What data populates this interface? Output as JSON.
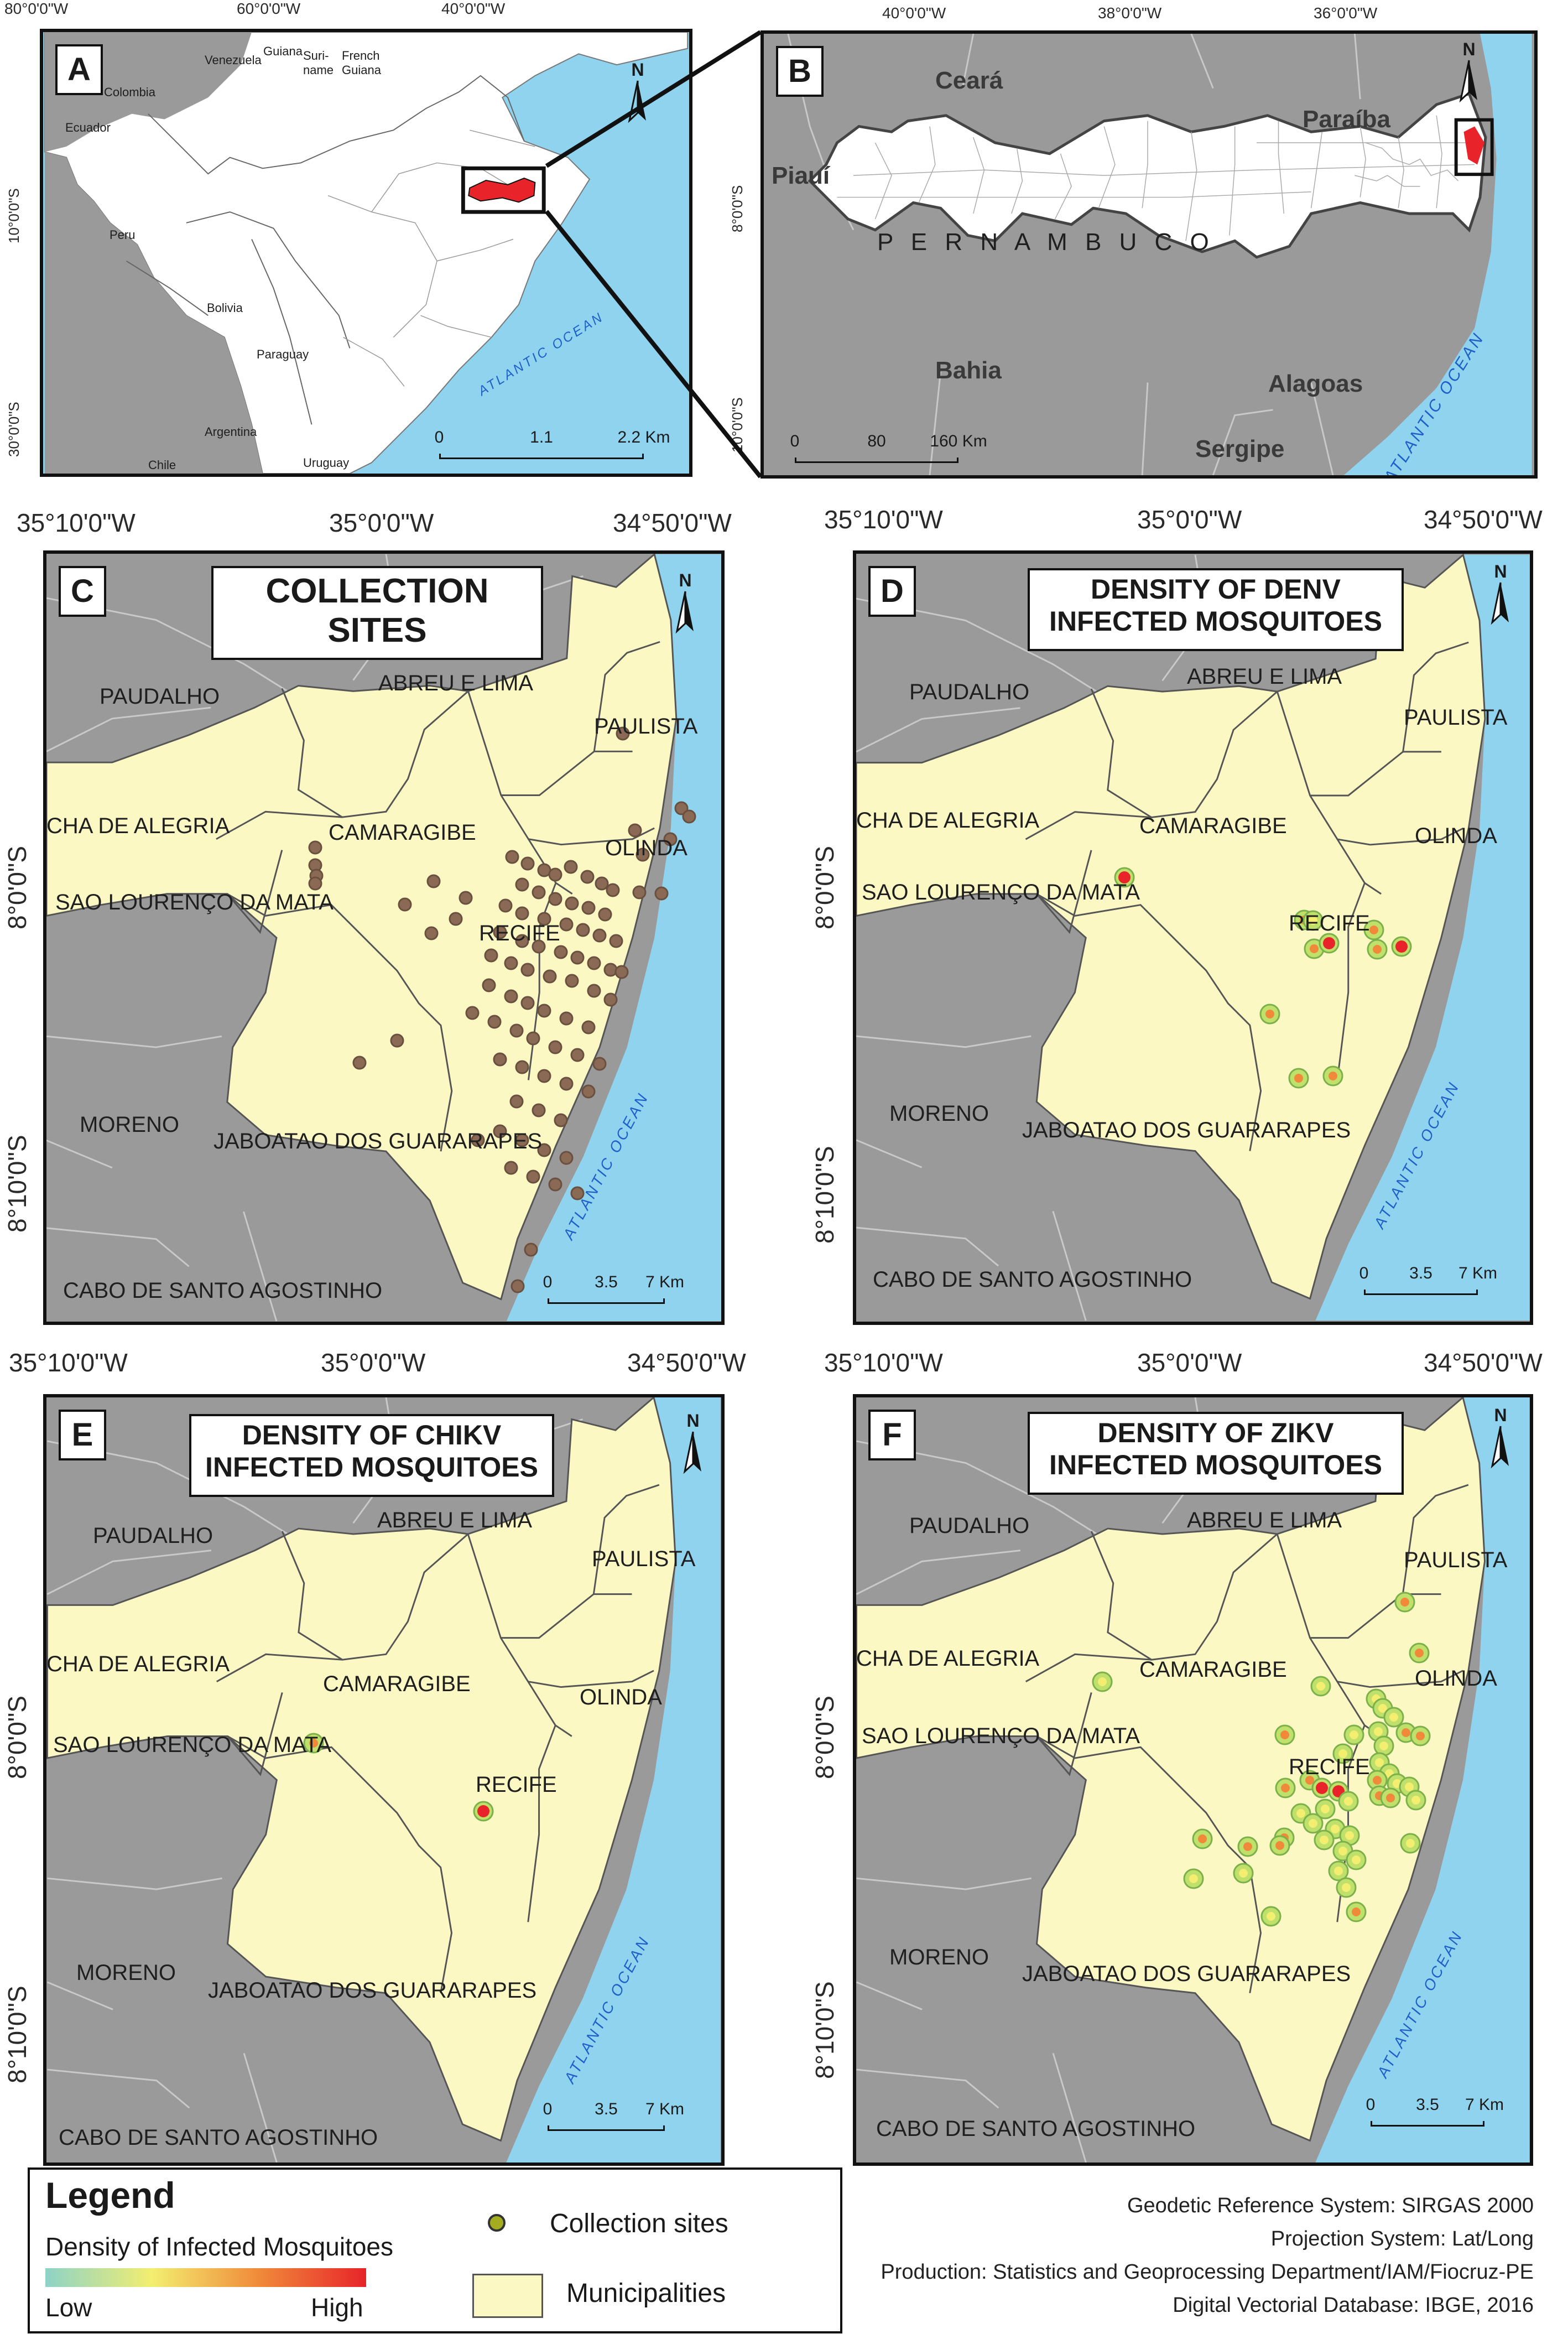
{
  "panel_labels": {
    "a": "A",
    "b": "B",
    "c": "C",
    "d": "D",
    "e": "E",
    "f": "F"
  },
  "top_coords": {
    "a_x": [
      "80°0'0\"W",
      "60°0'0\"W",
      "40°0'0\"W"
    ],
    "a_y": [
      "10°0'0\"S",
      "30°0'0\"S"
    ],
    "b_x": [
      "40°0'0\"W",
      "38°0'0\"W",
      "36°0'0\"W"
    ],
    "b_y": [
      "8°0'0\"S",
      "10°0'0\"S"
    ]
  },
  "grid_coords": {
    "x": [
      "35°10'0\"W",
      "35°0'0\"W",
      "34°50'0\"W"
    ],
    "y": [
      "8°0'0\"S",
      "8°10'0\"S"
    ]
  },
  "panel_a": {
    "countries": [
      "Colombia",
      "Venezuela",
      "Guiana",
      "Suri-\nname",
      "French\nGuiana",
      "Ecuador",
      "Peru",
      "Bolivia",
      "Paraguay",
      "Argentina",
      "Uruguay",
      "Chile"
    ],
    "ocean": "ATLANTIC OCEAN",
    "scale": [
      "0",
      "1.1",
      "2.2 Km"
    ]
  },
  "panel_b": {
    "states": [
      "Ceará",
      "Paraíba",
      "Piauí",
      "Bahia",
      "Alagoas",
      "Sergipe"
    ],
    "state_name": "P E R N A M B U C O",
    "ocean": "ATLANTIC OCEAN",
    "scale": [
      "0",
      "80",
      "160 Km"
    ]
  },
  "municipalities": {
    "paudalho": "PAUDALHO",
    "abreu": "ABREU E LIMA",
    "paulista": "PAULISTA",
    "cha": "CHA DE ALEGRIA",
    "camaragibe": "CAMARAGIBE",
    "olinda": "OLINDA",
    "slm": "SAO LOURENÇO DA MATA",
    "recife": "RECIFE",
    "moreno": "MORENO",
    "jaboatao": "JABOATAO DOS GUARARAPES",
    "cabo": "CABO DE SANTO AGOSTINHO"
  },
  "north_letter": "N",
  "panel_titles": {
    "c": [
      "COLLECTION",
      "SITES"
    ],
    "d": [
      "DENSITY OF DENV",
      "INFECTED MOSQUITOES"
    ],
    "e": [
      "DENSITY OF CHIKV",
      "INFECTED MOSQUITOES"
    ],
    "f": [
      "DENSITY OF ZIKV",
      "INFECTED MOSQUITOES"
    ]
  },
  "ocean_label": "ATLANTIC OCEAN",
  "scale_small": [
    "0",
    "3.5",
    "7 Km"
  ],
  "legend": {
    "title": "Legend",
    "density_label": "Density of Infected Mosquitoes",
    "low": "Low",
    "high": "High",
    "collection_sites": "Collection sites",
    "municipalities": "Municipalities"
  },
  "credits": [
    "Geodetic Reference System: SIRGAS 2000",
    "Projection System: Lat/Long",
    "Production: Statistics and Geoprocessing Department/IAM/Fiocruz-PE",
    "Digital Vectorial Database: IBGE, 2016"
  ],
  "colors": {
    "ocean": "#8fd3ee",
    "land": "#9a9a9a",
    "municipality": "#fbf8c4",
    "site": "#8b6a55",
    "highlight": "#e8242a",
    "low": "#3ea86b",
    "mid": "#f3ee70",
    "high": "#e8242a"
  }
}
